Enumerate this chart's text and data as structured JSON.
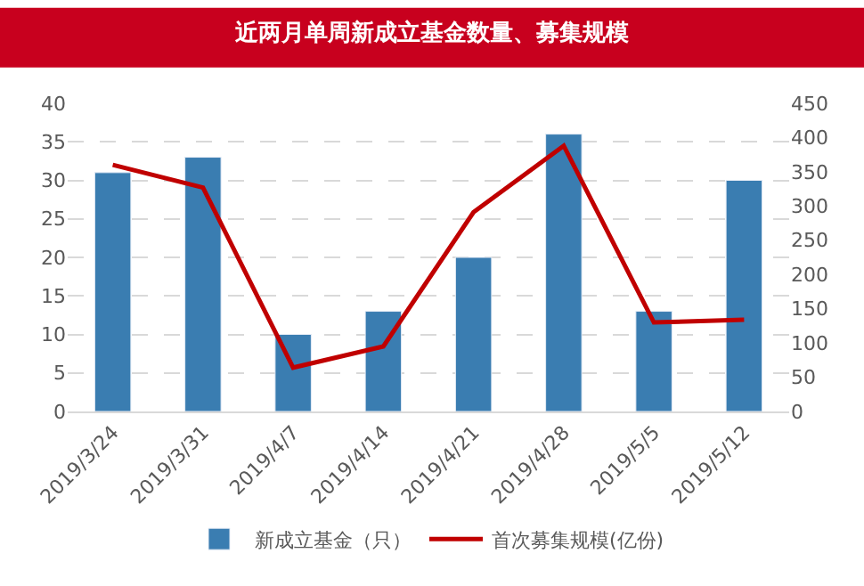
{
  "chart_data": {
    "type": "bar",
    "title": "近两月单周新成立基金数量、募集规模",
    "categories": [
      "2019/3/24",
      "2019/3/31",
      "2019/4/7",
      "2019/4/14",
      "2019/4/21",
      "2019/4/28",
      "2019/5/5",
      "2019/5/12"
    ],
    "series": [
      {
        "name": "新成立基金（只）",
        "color": "#3a7db1",
        "values": [
          31,
          33,
          10,
          13,
          20,
          36,
          13,
          30
        ]
      },
      {
        "name": "首次募集规模(亿份)",
        "type": "line",
        "axis": "y2",
        "color": "#c00000",
        "values": [
          360,
          327,
          64,
          95,
          291,
          388,
          130,
          134
        ]
      }
    ],
    "ylim": [
      0,
      40
    ],
    "yticks": [
      0,
      5,
      10,
      15,
      20,
      25,
      30,
      35,
      40
    ],
    "y2lim": [
      0,
      450
    ],
    "y2ticks": [
      0,
      50,
      100,
      150,
      200,
      250,
      300,
      350,
      400,
      450
    ],
    "grid": "y",
    "legend": "bottom",
    "marker": "none",
    "line_style": "solid"
  }
}
